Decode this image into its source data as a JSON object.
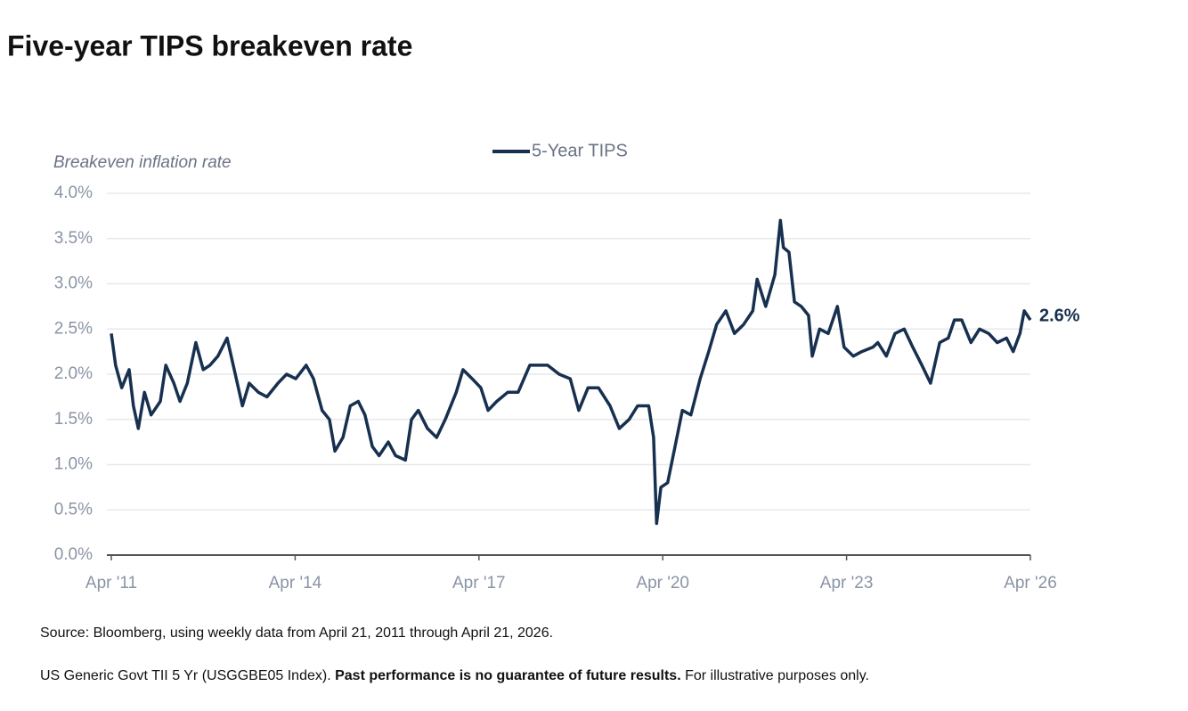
{
  "chart_data": {
    "type": "line",
    "title": "Five-year TIPS breakeven rate",
    "y_label": "Breakeven inflation rate",
    "source": "Source: Bloomberg, using weekly data from April 21, 2011 through April 21, 2026.",
    "note_parts": [
      "US Generic Govt TII 5 Yr (USGGBE05 Index).",
      "Past performance is no guarantee of future results.",
      "For illustrative purposes only."
    ],
    "xlim": [
      2011.3,
      2026.3
    ],
    "xticks": [
      {
        "value": 2011.3,
        "label": "Apr '11"
      },
      {
        "value": 2014.3,
        "label": "Apr '14"
      },
      {
        "value": 2017.3,
        "label": "Apr '17"
      },
      {
        "value": 2020.3,
        "label": "Apr '20"
      },
      {
        "value": 2023.3,
        "label": "Apr '23"
      },
      {
        "value": 2026.3,
        "label": "Apr '26"
      }
    ],
    "ylim": [
      0,
      4
    ],
    "yticks": [
      {
        "value": 0,
        "label": "0.0%"
      },
      {
        "value": 0.5,
        "label": "0.5%"
      },
      {
        "value": 1,
        "label": "1.0%"
      },
      {
        "value": 1.5,
        "label": "1.5%"
      },
      {
        "value": 2,
        "label": "2.0%"
      },
      {
        "value": 2.5,
        "label": "2.5%"
      },
      {
        "value": 3,
        "label": "3.0%"
      },
      {
        "value": 3.5,
        "label": "3.5%"
      },
      {
        "value": 4,
        "label": "4.0%"
      }
    ],
    "grid": true,
    "legend": "top",
    "series": [
      {
        "name": "5-Year TIPS",
        "color": "#17304f",
        "end_label": "2.6%",
        "x": [
          2011.3,
          2011.37,
          2011.47,
          2011.59,
          2011.66,
          2011.74,
          2011.84,
          2011.95,
          2012.1,
          2012.19,
          2012.32,
          2012.42,
          2012.54,
          2012.68,
          2012.8,
          2012.91,
          2013.04,
          2013.19,
          2013.29,
          2013.44,
          2013.55,
          2013.7,
          2013.84,
          2014.02,
          2014.16,
          2014.31,
          2014.48,
          2014.6,
          2014.74,
          2014.86,
          2014.95,
          2015.08,
          2015.2,
          2015.33,
          2015.44,
          2015.56,
          2015.67,
          2015.82,
          2015.94,
          2016.1,
          2016.2,
          2016.31,
          2016.46,
          2016.61,
          2016.75,
          2016.93,
          2017.04,
          2017.19,
          2017.33,
          2017.45,
          2017.59,
          2017.77,
          2017.94,
          2018.13,
          2018.28,
          2018.42,
          2018.61,
          2018.79,
          2018.93,
          2019.08,
          2019.25,
          2019.44,
          2019.59,
          2019.75,
          2019.89,
          2020.07,
          2020.15,
          2020.2,
          2020.27,
          2020.38,
          2020.5,
          2020.62,
          2020.76,
          2020.91,
          2021.05,
          2021.18,
          2021.33,
          2021.47,
          2021.62,
          2021.77,
          2021.84,
          2021.98,
          2022.13,
          2022.22,
          2022.27,
          2022.36,
          2022.45,
          2022.56,
          2022.68,
          2022.74,
          2022.86,
          2023.0,
          2023.15,
          2023.26,
          2023.41,
          2023.55,
          2023.73,
          2023.81,
          2023.95,
          2024.09,
          2024.24,
          2024.38,
          2024.53,
          2024.67,
          2024.82,
          2024.96,
          2025.06,
          2025.18,
          2025.33,
          2025.47,
          2025.62,
          2025.76,
          2025.91,
          2026.02,
          2026.13,
          2026.2,
          2026.3
        ],
        "values": [
          2.45,
          2.1,
          1.85,
          2.05,
          1.65,
          1.4,
          1.8,
          1.55,
          1.7,
          2.1,
          1.9,
          1.7,
          1.9,
          2.35,
          2.05,
          2.1,
          2.2,
          2.4,
          2.1,
          1.65,
          1.9,
          1.8,
          1.75,
          1.9,
          2.0,
          1.95,
          2.1,
          1.95,
          1.6,
          1.5,
          1.15,
          1.3,
          1.65,
          1.7,
          1.55,
          1.2,
          1.1,
          1.25,
          1.1,
          1.05,
          1.5,
          1.6,
          1.4,
          1.3,
          1.5,
          1.8,
          2.05,
          1.95,
          1.85,
          1.6,
          1.7,
          1.8,
          1.8,
          2.1,
          2.1,
          2.1,
          2.0,
          1.95,
          1.6,
          1.85,
          1.85,
          1.65,
          1.4,
          1.5,
          1.65,
          1.65,
          1.3,
          0.35,
          0.75,
          0.8,
          1.2,
          1.6,
          1.55,
          1.95,
          2.25,
          2.55,
          2.7,
          2.45,
          2.55,
          2.7,
          3.05,
          2.75,
          3.1,
          3.7,
          3.4,
          3.35,
          2.8,
          2.75,
          2.65,
          2.2,
          2.5,
          2.45,
          2.75,
          2.3,
          2.2,
          2.25,
          2.3,
          2.35,
          2.2,
          2.45,
          2.5,
          2.3,
          2.1,
          1.9,
          2.35,
          2.4,
          2.6,
          2.6,
          2.35,
          2.5,
          2.45,
          2.35,
          2.4,
          2.25,
          2.45,
          2.7,
          2.6
        ]
      }
    ]
  }
}
